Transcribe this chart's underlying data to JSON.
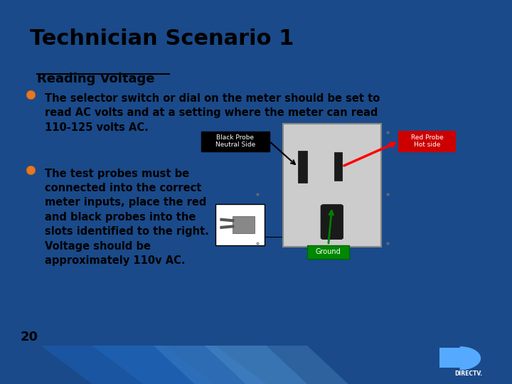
{
  "title": "Technician Scenario 1",
  "subtitle": "Reading Voltage",
  "bullet1": "The selector switch or dial on the meter should be set to\nread AC volts and at a setting where the meter can read\n110-125 volts AC.",
  "bullet2": "The test probes must be\nconnected into the correct\nmeter inputs, place the red\nand black probes into the\nslots identified to the right.\nVoltage should be\napproximately 110v AC.",
  "page_number": "20",
  "bg_color": "#ffffff",
  "slide_bg": "#1a4a8a",
  "title_color": "#000000",
  "subtitle_color": "#000000",
  "bullet_color": "#000000",
  "bullet_dot_color": "#e87722",
  "label_black_bg": "#000000",
  "label_red_bg": "#cc0000",
  "label_green_bg": "#008800",
  "label_text_color": "#ffffff"
}
